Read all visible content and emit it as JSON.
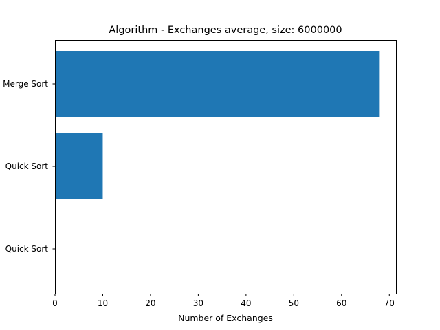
{
  "chart_data": {
    "type": "bar",
    "orientation": "horizontal",
    "title": "Algorithm - Exchanges average, size: 6000000",
    "xlabel": "Number of Exchanges",
    "ylabel": "",
    "categories": [
      "Merge Sort",
      "Quick Sort",
      "Quick Sort"
    ],
    "values": [
      68,
      10,
      0
    ],
    "xlim": [
      0,
      71.4
    ],
    "xticks": [
      0,
      10,
      20,
      30,
      40,
      50,
      60,
      70
    ],
    "grid": false,
    "legend": "none",
    "bar_color": "#1f77b4"
  }
}
